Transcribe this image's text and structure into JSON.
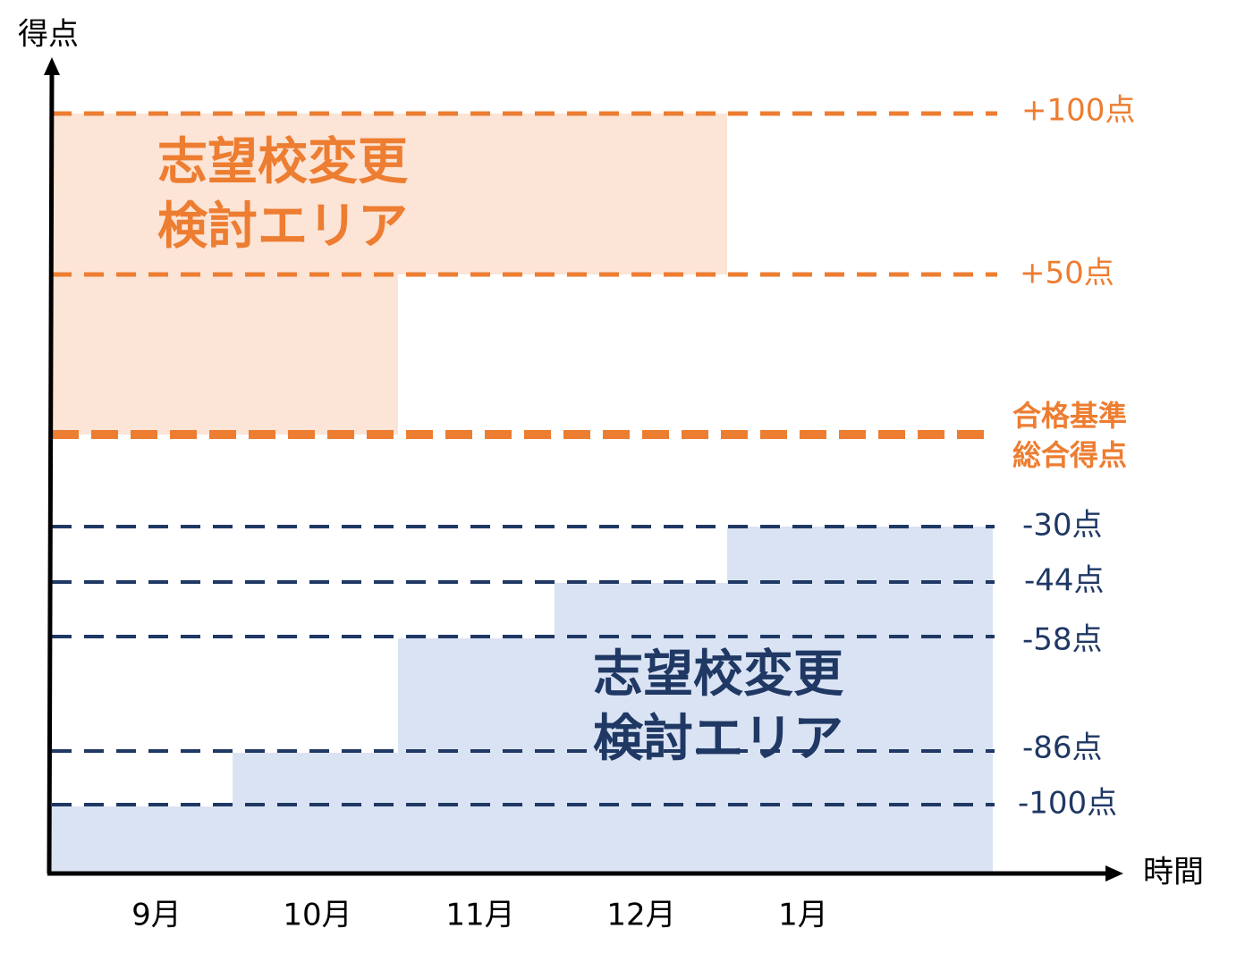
{
  "axis": {
    "y_label": "得点",
    "x_label": "時間"
  },
  "months": [
    "9月",
    "10月",
    "11月",
    "12月",
    "1月"
  ],
  "upper_lines": [
    "+100点",
    "+50点"
  ],
  "baseline_label": [
    "合格基準",
    "総合得点"
  ],
  "lower_lines": [
    "-30点",
    "-44点",
    "-58点",
    "-86点",
    "-100点"
  ],
  "upper_area_label": [
    "志望校変更",
    "検討エリア"
  ],
  "lower_area_label": [
    "志望校変更",
    "検討エリア"
  ]
}
